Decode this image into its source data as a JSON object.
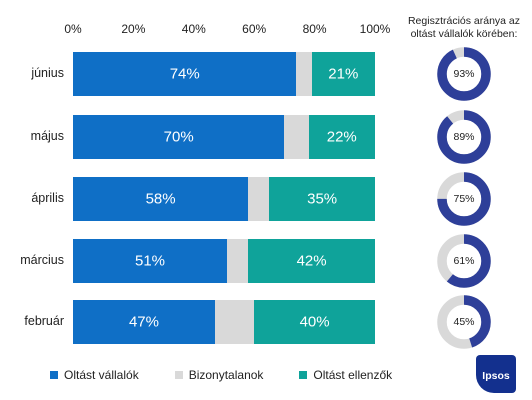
{
  "colors": {
    "accept": "#0f6fc6",
    "undecided": "#d9d9d9",
    "reject": "#0fa39a",
    "donut": "#2e3f99",
    "donut_rest": "#d9d9d9"
  },
  "chart_data": {
    "type": "bar",
    "orientation": "horizontal-stacked-percent",
    "x_ticks": [
      "0%",
      "20%",
      "40%",
      "60%",
      "80%",
      "100%"
    ],
    "xlim": [
      0,
      100
    ],
    "categories": [
      "június",
      "május",
      "április",
      "március",
      "február"
    ],
    "series": [
      {
        "name": "Oltást vállalók",
        "values": [
          74,
          70,
          58,
          51,
          47
        ],
        "labels": [
          "74%",
          "70%",
          "58%",
          "51%",
          "47%"
        ]
      },
      {
        "name": "Bizonytalanok",
        "values": [
          5,
          8,
          7,
          7,
          13
        ]
      },
      {
        "name": "Oltást ellenzők",
        "values": [
          21,
          22,
          35,
          42,
          40
        ],
        "labels": [
          "21%",
          "22%",
          "35%",
          "42%",
          "40%"
        ]
      }
    ],
    "legend_position": "bottom"
  },
  "side_chart": {
    "title": "Regisztrációs aránya az oltást vállalók körében:",
    "type": "donut",
    "categories": [
      "június",
      "május",
      "április",
      "március",
      "február"
    ],
    "values": [
      93,
      89,
      75,
      61,
      45
    ],
    "labels": [
      "93%",
      "89%",
      "75%",
      "61%",
      "45%"
    ]
  },
  "legend": [
    {
      "label": "Oltást vállalók",
      "color_key": "accept"
    },
    {
      "label": "Bizonytalanok",
      "color_key": "undecided"
    },
    {
      "label": "Oltást ellenzők",
      "color_key": "reject"
    }
  ],
  "logo": {
    "text": "Ipsos"
  }
}
